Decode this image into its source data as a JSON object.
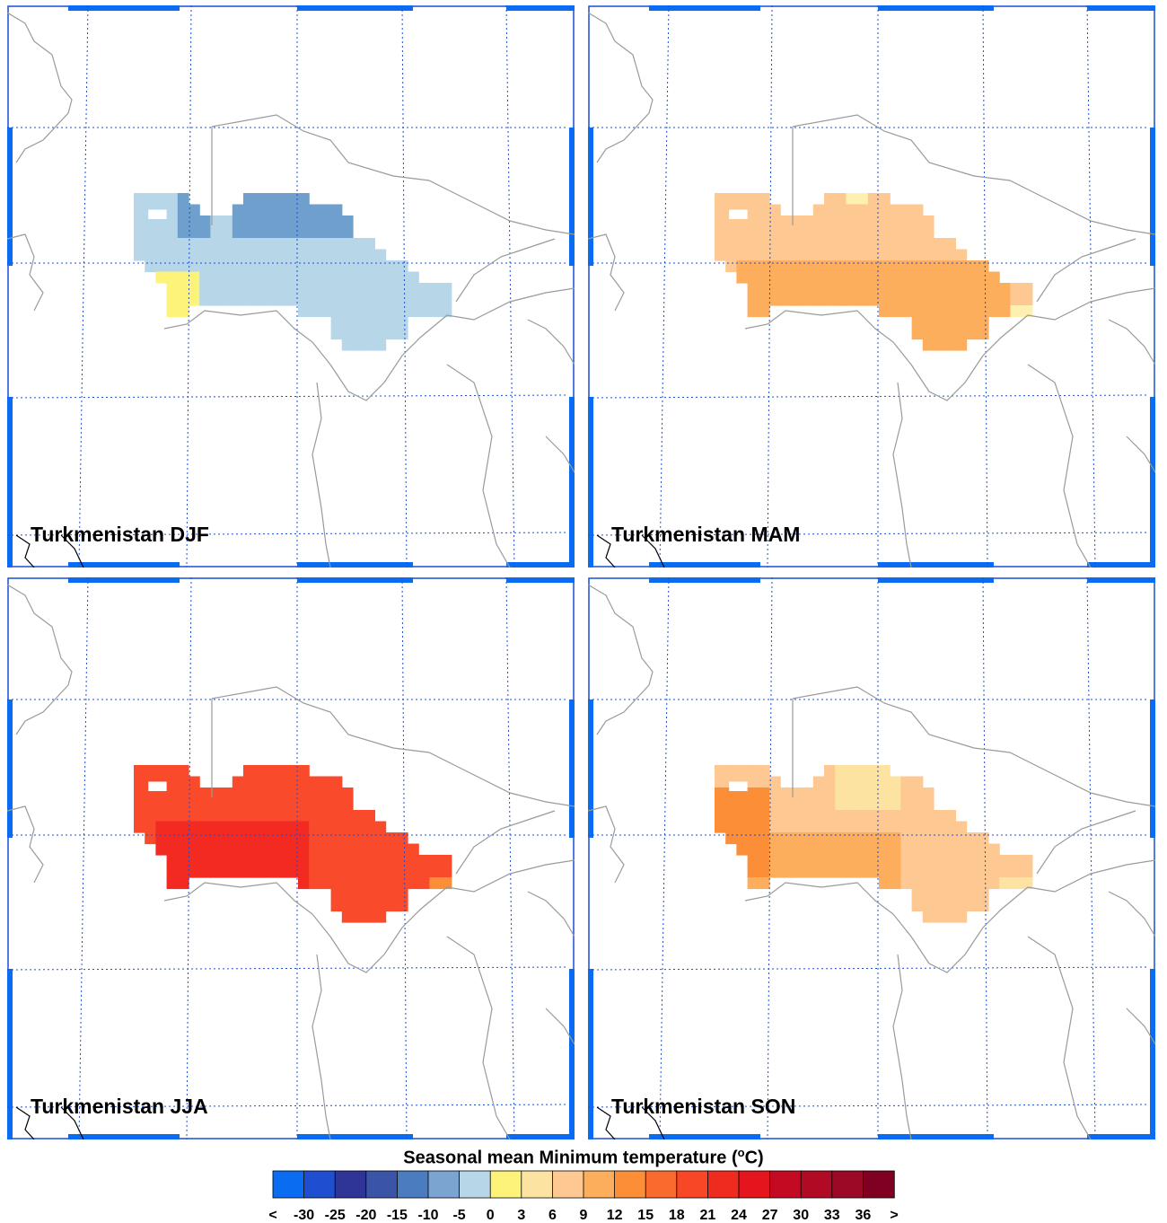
{
  "panels": [
    {
      "label": "Turkmenistan DJF",
      "season": "DJF",
      "pos": [
        8,
        6
      ]
    },
    {
      "label": "Turkmenistan MAM",
      "season": "MAM",
      "pos": [
        655,
        6
      ]
    },
    {
      "label": "Turkmenistan JJA",
      "season": "JJA",
      "pos": [
        8,
        643
      ]
    },
    {
      "label": "Turkmenistan SON",
      "season": "SON",
      "pos": [
        655,
        643
      ]
    }
  ],
  "colorbar": {
    "title_main": "Seasonal mean Minimum temperature (",
    "title_sup": "o",
    "title_end": "C)",
    "colors": [
      "#0a6cf0",
      "#1f4ed0",
      "#2e3596",
      "#3a55a8",
      "#4a7cbf",
      "#7ba5d0",
      "#b7d7e8",
      "#fdf27a",
      "#fde3a2",
      "#fdc891",
      "#fdae5c",
      "#fb8e36",
      "#f96a2e",
      "#f74726",
      "#ef2a1f",
      "#e4151d",
      "#c40a23",
      "#b00a24",
      "#9c0926",
      "#800021"
    ],
    "labels": [
      "<",
      "-30",
      "-25",
      "-20",
      "-15",
      "-10",
      "-5",
      "0",
      "3",
      "6",
      "9",
      "12",
      "15",
      "18",
      "21",
      "24",
      "27",
      "30",
      "33",
      "36",
      ">"
    ]
  },
  "fills": {
    "DJF": {
      "base": "#b7d7e8",
      "cold": "#6f9fcc",
      "warm": "#fdf27a"
    },
    "MAM": {
      "base": "#fdc891",
      "warm": "#fdae5c",
      "hot": "#fdf0b0"
    },
    "JJA": {
      "base": "#f94a2c",
      "hot": "#f22a22",
      "light": "#fb8e36"
    },
    "SON": {
      "base": "#fdc891",
      "warm": "#fdae5c",
      "hot": "#fb8e36",
      "pale": "#fde3a2"
    }
  }
}
